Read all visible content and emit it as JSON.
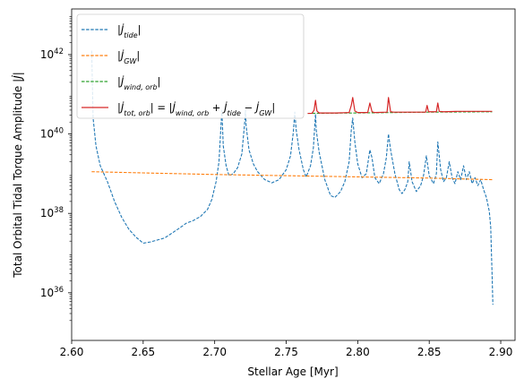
{
  "chart_data": {
    "type": "line",
    "xlabel": "Stellar Age [Myr]",
    "ylabel": "Total Orbital Tidal Torque Amplitude |J̇|",
    "ylabel_text": "Total Orbital Tidal Torque Amplitude",
    "ylabel_symbol": "|J̇|",
    "xlim": [
      2.6,
      2.91
    ],
    "ylim_log10": [
      34.8,
      43.15
    ],
    "yscale": "log",
    "grid": false,
    "legend_position": "top-left",
    "x_ticks": [
      2.6,
      2.65,
      2.7,
      2.75,
      2.8,
      2.85,
      2.9
    ],
    "x_tick_labels": [
      "2.60",
      "2.65",
      "2.70",
      "2.75",
      "2.80",
      "2.85",
      "2.90"
    ],
    "y_ticks_log10": [
      36,
      38,
      40,
      42
    ],
    "y_tick_labels": [
      {
        "base": "10",
        "exp": "36"
      },
      {
        "base": "10",
        "exp": "38"
      },
      {
        "base": "10",
        "exp": "40"
      },
      {
        "base": "10",
        "exp": "42"
      }
    ],
    "series": [
      {
        "name": "|J̇_tide|",
        "legend_parts": [
          "|J̇",
          "tide",
          "|"
        ],
        "color": "#1f77b4",
        "dash": "dashed",
        "points_log10": [
          [
            2.614,
            42.1
          ],
          [
            2.615,
            40.4
          ],
          [
            2.617,
            39.7
          ],
          [
            2.62,
            39.2
          ],
          [
            2.625,
            38.8
          ],
          [
            2.63,
            38.3
          ],
          [
            2.635,
            37.9
          ],
          [
            2.64,
            37.6
          ],
          [
            2.645,
            37.4
          ],
          [
            2.65,
            37.25
          ],
          [
            2.655,
            37.28
          ],
          [
            2.66,
            37.33
          ],
          [
            2.665,
            37.38
          ],
          [
            2.67,
            37.5
          ],
          [
            2.675,
            37.62
          ],
          [
            2.68,
            37.75
          ],
          [
            2.685,
            37.82
          ],
          [
            2.69,
            37.92
          ],
          [
            2.695,
            38.1
          ],
          [
            2.698,
            38.35
          ],
          [
            2.701,
            38.8
          ],
          [
            2.703,
            39.3
          ],
          [
            2.705,
            40.6
          ],
          [
            2.706,
            39.7
          ],
          [
            2.708,
            39.2
          ],
          [
            2.71,
            38.95
          ],
          [
            2.713,
            39.0
          ],
          [
            2.716,
            39.15
          ],
          [
            2.719,
            39.5
          ],
          [
            2.721,
            40.3
          ],
          [
            2.7215,
            40.6
          ],
          [
            2.722,
            40.2
          ],
          [
            2.724,
            39.6
          ],
          [
            2.727,
            39.25
          ],
          [
            2.73,
            39.05
          ],
          [
            2.735,
            38.85
          ],
          [
            2.74,
            38.77
          ],
          [
            2.745,
            38.85
          ],
          [
            2.75,
            39.1
          ],
          [
            2.753,
            39.45
          ],
          [
            2.755,
            40.05
          ],
          [
            2.756,
            40.55
          ],
          [
            2.757,
            40.1
          ],
          [
            2.759,
            39.6
          ],
          [
            2.762,
            39.1
          ],
          [
            2.764,
            38.92
          ],
          [
            2.767,
            39.2
          ],
          [
            2.769,
            39.65
          ],
          [
            2.7705,
            40.5
          ],
          [
            2.771,
            40.1
          ],
          [
            2.773,
            39.55
          ],
          [
            2.777,
            38.85
          ],
          [
            2.781,
            38.45
          ],
          [
            2.784,
            38.4
          ],
          [
            2.788,
            38.55
          ],
          [
            2.791,
            38.8
          ],
          [
            2.794,
            39.3
          ],
          [
            2.7955,
            40.1
          ],
          [
            2.7965,
            40.4
          ],
          [
            2.798,
            39.8
          ],
          [
            2.8,
            39.25
          ],
          [
            2.803,
            38.9
          ],
          [
            2.806,
            39.0
          ],
          [
            2.8085,
            39.6
          ],
          [
            2.81,
            39.4
          ],
          [
            2.812,
            38.9
          ],
          [
            2.815,
            38.75
          ],
          [
            2.818,
            39.0
          ],
          [
            2.82,
            39.4
          ],
          [
            2.8215,
            40.0
          ],
          [
            2.823,
            39.6
          ],
          [
            2.826,
            39.0
          ],
          [
            2.829,
            38.6
          ],
          [
            2.831,
            38.5
          ],
          [
            2.833,
            38.6
          ],
          [
            2.835,
            38.8
          ],
          [
            2.836,
            39.3
          ],
          [
            2.838,
            38.8
          ],
          [
            2.841,
            38.55
          ],
          [
            2.844,
            38.7
          ],
          [
            2.846,
            38.95
          ],
          [
            2.848,
            39.45
          ],
          [
            2.85,
            38.95
          ],
          [
            2.853,
            38.75
          ],
          [
            2.855,
            39.0
          ],
          [
            2.856,
            39.8
          ],
          [
            2.858,
            39.1
          ],
          [
            2.86,
            38.8
          ],
          [
            2.862,
            38.9
          ],
          [
            2.864,
            39.3
          ],
          [
            2.866,
            38.9
          ],
          [
            2.868,
            38.75
          ],
          [
            2.87,
            39.05
          ],
          [
            2.872,
            38.85
          ],
          [
            2.874,
            39.2
          ],
          [
            2.876,
            38.85
          ],
          [
            2.878,
            39.05
          ],
          [
            2.88,
            38.75
          ],
          [
            2.882,
            38.9
          ],
          [
            2.884,
            38.7
          ],
          [
            2.886,
            38.85
          ],
          [
            2.888,
            38.6
          ],
          [
            2.89,
            38.4
          ],
          [
            2.892,
            38.05
          ],
          [
            2.893,
            37.65
          ],
          [
            2.8935,
            37.0
          ],
          [
            2.894,
            36.4
          ],
          [
            2.8945,
            35.7
          ]
        ]
      },
      {
        "name": "|J̇_GW|",
        "legend_parts": [
          "|J̇",
          "GW",
          "|"
        ],
        "color": "#ff7f0e",
        "dash": "dashed",
        "points_log10": [
          [
            2.614,
            39.05
          ],
          [
            2.65,
            39.02
          ],
          [
            2.7,
            38.98
          ],
          [
            2.75,
            38.95
          ],
          [
            2.8,
            38.92
          ],
          [
            2.85,
            38.89
          ],
          [
            2.894,
            38.85
          ]
        ]
      },
      {
        "name": "|J̇_wind,orb|",
        "legend_parts": [
          "|J̇",
          "wind, orb",
          "|"
        ],
        "color": "#2ca02c",
        "dash": "dashed",
        "points_log10": [
          [
            2.765,
            40.52
          ],
          [
            2.8,
            40.53
          ],
          [
            2.85,
            40.55
          ],
          [
            2.894,
            40.56
          ]
        ]
      },
      {
        "name": "|J̇_tot,orb| = |J̇_wind,orb + J̇_tide − J̇_GW|",
        "legend_parts": [
          "|J̇",
          "tot, orb",
          "| = |J̇",
          "wind, orb",
          " + J̇",
          "tide",
          " − J̇",
          "GW",
          "|"
        ],
        "color": "#d62728",
        "dash": "solid",
        "points_log10": [
          [
            2.765,
            40.52
          ],
          [
            2.768,
            40.52
          ],
          [
            2.7695,
            40.6
          ],
          [
            2.7705,
            40.85
          ],
          [
            2.7715,
            40.58
          ],
          [
            2.773,
            40.53
          ],
          [
            2.785,
            40.53
          ],
          [
            2.794,
            40.54
          ],
          [
            2.7955,
            40.72
          ],
          [
            2.7965,
            40.92
          ],
          [
            2.798,
            40.58
          ],
          [
            2.8,
            40.54
          ],
          [
            2.807,
            40.54
          ],
          [
            2.8085,
            40.78
          ],
          [
            2.81,
            40.56
          ],
          [
            2.812,
            40.54
          ],
          [
            2.8205,
            40.55
          ],
          [
            2.8215,
            40.92
          ],
          [
            2.823,
            40.56
          ],
          [
            2.825,
            40.55
          ],
          [
            2.8475,
            40.55
          ],
          [
            2.8485,
            40.72
          ],
          [
            2.8495,
            40.56
          ],
          [
            2.855,
            40.56
          ],
          [
            2.856,
            40.78
          ],
          [
            2.857,
            40.57
          ],
          [
            2.86,
            40.56
          ],
          [
            2.87,
            40.57
          ],
          [
            2.88,
            40.57
          ],
          [
            2.894,
            40.57
          ]
        ]
      }
    ]
  }
}
